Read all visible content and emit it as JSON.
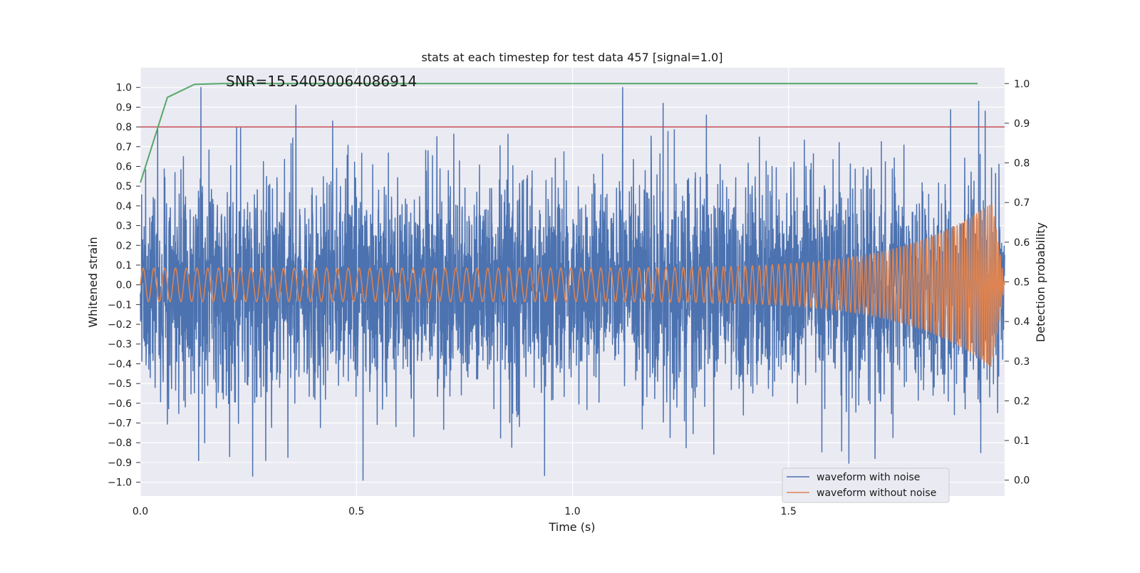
{
  "chart_data": {
    "type": "line",
    "title": "stats at each timestep for test data 457 [signal=1.0]",
    "annotation": "SNR=15.54050064086914",
    "xlabel": "Time (s)",
    "ylabel_left": "Whitened strain",
    "ylabel_right": "Detection probability",
    "xlim": [
      0.0,
      2.0
    ],
    "ylim_left": [
      -1.07,
      1.1
    ],
    "ylim_right": [
      -0.04,
      1.04
    ],
    "x_ticks": [
      0.0,
      0.5,
      1.0,
      1.5
    ],
    "x_tick_labels": [
      "0.0",
      "0.5",
      "1.0",
      "1.5"
    ],
    "y_left_ticks": [
      -1.0,
      -0.9,
      -0.8,
      -0.7,
      -0.6,
      -0.5,
      -0.4,
      -0.3,
      -0.2,
      -0.1,
      0.0,
      0.1,
      0.2,
      0.3,
      0.4,
      0.5,
      0.6,
      0.7,
      0.8,
      0.9,
      1.0
    ],
    "y_left_tick_labels": [
      "−1.0",
      "−0.9",
      "−0.8",
      "−0.7",
      "−0.6",
      "−0.5",
      "−0.4",
      "−0.3",
      "−0.2",
      "−0.1",
      "0.0",
      "0.1",
      "0.2",
      "0.3",
      "0.4",
      "0.5",
      "0.6",
      "0.7",
      "0.8",
      "0.9",
      "1.0"
    ],
    "y_right_ticks": [
      0.0,
      0.1,
      0.2,
      0.3,
      0.4,
      0.5,
      0.6,
      0.7,
      0.8,
      0.9,
      1.0
    ],
    "y_right_tick_labels": [
      "0.0",
      "0.1",
      "0.2",
      "0.3",
      "0.4",
      "0.5",
      "0.6",
      "0.7",
      "0.8",
      "0.9",
      "1.0"
    ],
    "threshold": {
      "axis": "left",
      "value": 0.8,
      "color": "#c44e52"
    },
    "series": [
      {
        "name": "waveform with noise",
        "axis": "left",
        "color": "#4c72b0",
        "kind": "noisy-strain",
        "x_start": 0.0,
        "x_end": 2.0,
        "samples": 4096,
        "std": 0.27,
        "peaks": [
          [
            0.14,
            1.0
          ],
          [
            0.26,
            -0.97
          ],
          [
            0.36,
            0.91
          ],
          [
            0.445,
            0.83
          ],
          [
            1.21,
            0.92
          ],
          [
            1.31,
            0.86
          ],
          [
            1.7,
            -0.88
          ],
          [
            1.94,
            0.93
          ],
          [
            1.945,
            -0.85
          ],
          [
            1.955,
            0.88
          ],
          [
            0.135,
            -0.89
          ],
          [
            0.29,
            -0.89
          ],
          [
            0.04,
            0.79
          ]
        ]
      },
      {
        "name": "waveform without noise",
        "axis": "left",
        "color": "#dd8452",
        "kind": "chirp",
        "x_start": 0.0,
        "x_end": 2.0,
        "amplitude_start": 0.085,
        "amplitude_end": 0.47,
        "freq_start_hz": 40,
        "freq_end_hz": 220
      },
      {
        "name": "detection probability",
        "axis": "right",
        "color": "#55a868",
        "x": [
          0.0,
          0.0625,
          0.125,
          0.1875,
          0.25,
          0.5,
          1.0,
          1.5,
          1.9375
        ],
        "y": [
          0.75,
          0.965,
          0.998,
          1.0,
          1.0,
          1.0,
          1.0,
          1.0,
          1.0
        ]
      }
    ],
    "legend": {
      "position": "lower-right",
      "entries": [
        "waveform with noise",
        "waveform without noise"
      ]
    },
    "grid": true,
    "background": "#eaeaf2"
  }
}
